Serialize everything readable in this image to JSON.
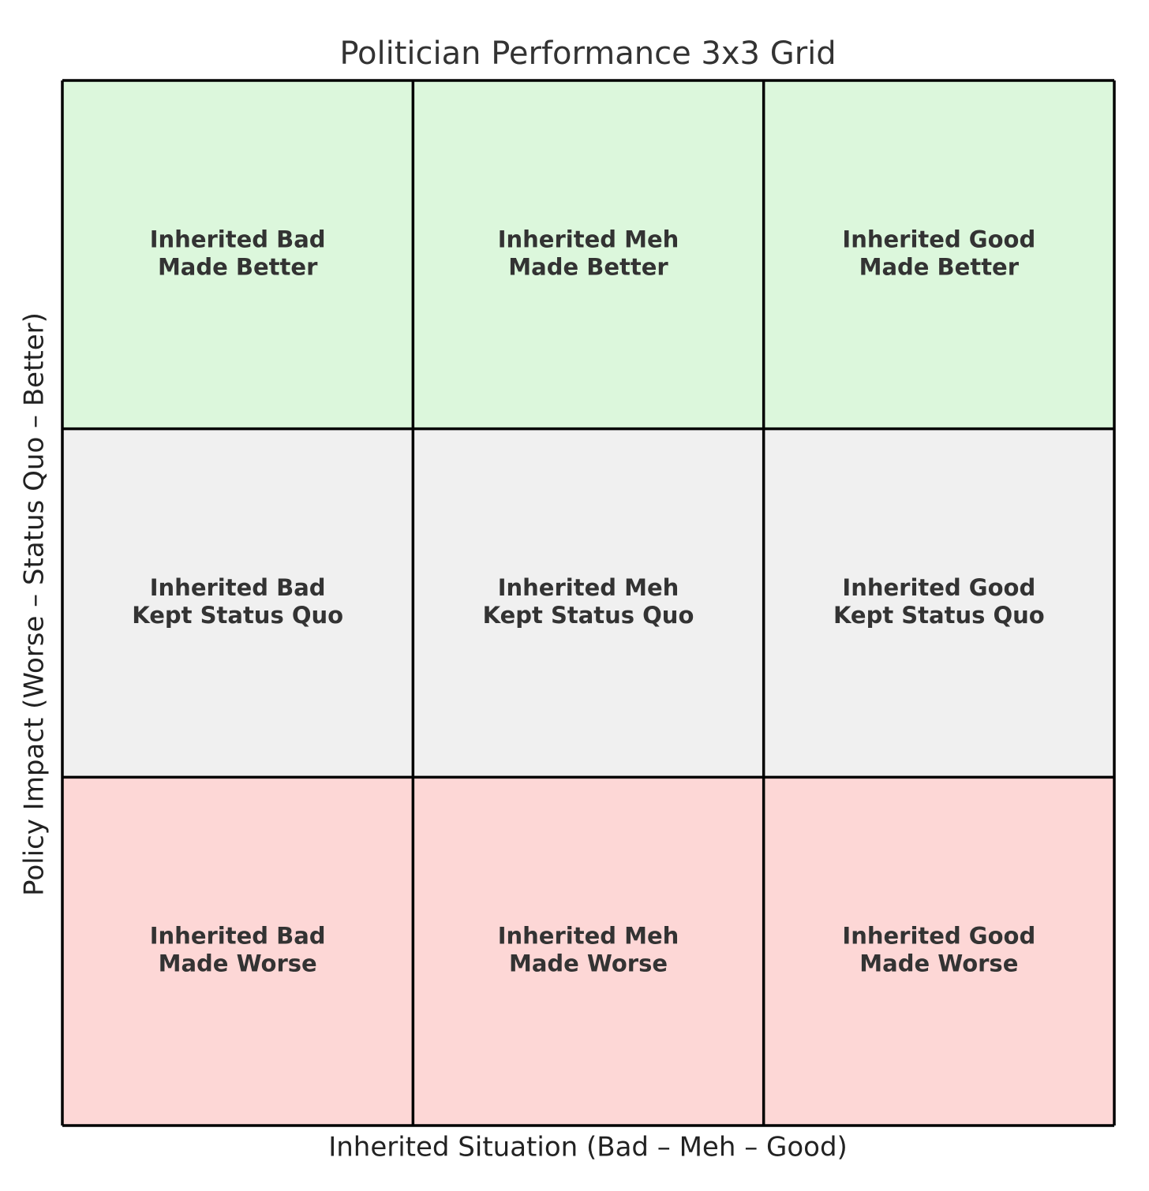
{
  "title": "Politician Performance 3x3 Grid",
  "x_label": "Inherited Situation (Bad – Meh – Good)",
  "y_label": "Policy Impact (Worse – Status Quo – Better)",
  "rows": [
    {
      "color": "#dcf7dc",
      "cells": [
        {
          "lines": [
            "Inherited Bad",
            "Made Better"
          ]
        },
        {
          "lines": [
            "Inherited Meh",
            "Made Better"
          ]
        },
        {
          "lines": [
            "Inherited Good",
            "Made Better"
          ]
        }
      ]
    },
    {
      "color": "#f0f0f0",
      "cells": [
        {
          "lines": [
            "Inherited Bad",
            "Kept Status Quo"
          ]
        },
        {
          "lines": [
            "Inherited Meh",
            "Kept Status Quo"
          ]
        },
        {
          "lines": [
            "Inherited Good",
            "Kept Status Quo"
          ]
        }
      ]
    },
    {
      "color": "#fdd7d6",
      "cells": [
        {
          "lines": [
            "Inherited Bad",
            "Made Worse"
          ]
        },
        {
          "lines": [
            "Inherited Meh",
            "Made Worse"
          ]
        },
        {
          "lines": [
            "Inherited Good",
            "Made Worse"
          ]
        }
      ]
    }
  ]
}
